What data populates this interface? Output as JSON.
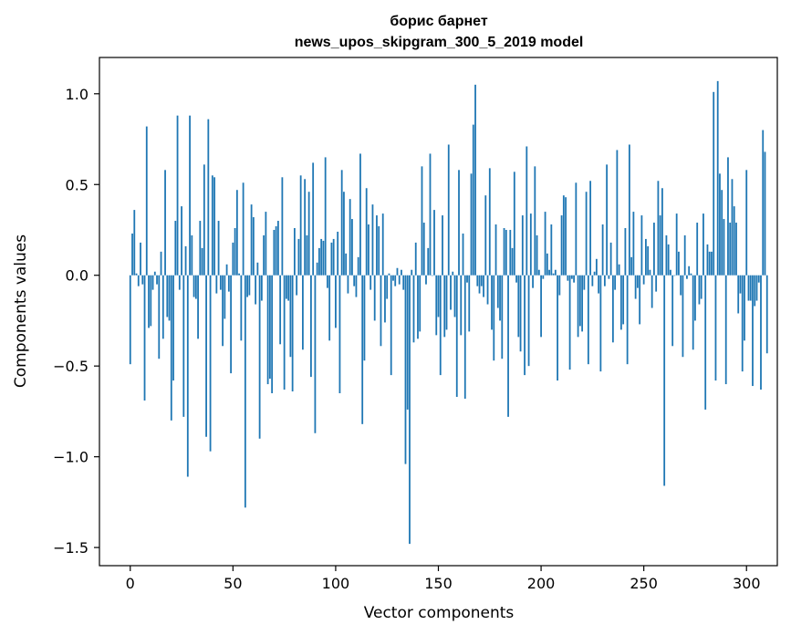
{
  "chart_data": {
    "type": "bar",
    "title": "борис барнет",
    "subtitle": "news_upos_skipgram_300_5_2019 model",
    "xlabel": "Vector components",
    "ylabel": "Components values",
    "xlim": [
      -15,
      315
    ],
    "ylim": [
      -1.6,
      1.2
    ],
    "xticks": [
      0,
      50,
      100,
      150,
      200,
      250,
      300
    ],
    "yticks": [
      -1.5,
      -1.0,
      -0.5,
      0.0,
      0.5,
      1.0
    ],
    "ytick_labels": [
      "−1.5",
      "−1.0",
      "−0.5",
      "0.0",
      "0.5",
      "1.0"
    ],
    "bar_color": "#1f77b4",
    "grid": false,
    "x_start": 0,
    "values": [
      -0.49,
      0.23,
      0.36,
      0.01,
      -0.06,
      0.18,
      -0.05,
      -0.69,
      0.82,
      -0.29,
      -0.28,
      -0.08,
      0.02,
      -0.05,
      -0.46,
      0.13,
      -0.35,
      0.58,
      -0.23,
      -0.25,
      -0.8,
      -0.58,
      0.3,
      0.88,
      -0.08,
      0.38,
      -0.78,
      0.16,
      -1.11,
      0.88,
      0.22,
      -0.12,
      -0.13,
      -0.35,
      0.3,
      0.15,
      0.61,
      -0.89,
      0.86,
      -0.97,
      0.55,
      0.54,
      -0.1,
      0.3,
      -0.08,
      -0.39,
      -0.24,
      0.06,
      -0.09,
      -0.54,
      0.18,
      0.26,
      0.47,
      0.01,
      -0.36,
      0.51,
      -1.28,
      -0.12,
      -0.11,
      0.39,
      0.32,
      -0.16,
      0.07,
      -0.9,
      -0.14,
      0.22,
      0.35,
      -0.6,
      -0.57,
      -0.65,
      0.25,
      0.27,
      0.3,
      -0.38,
      0.54,
      -0.63,
      -0.13,
      -0.14,
      -0.45,
      -0.64,
      0.26,
      -0.11,
      0.2,
      0.55,
      -0.41,
      0.53,
      0.22,
      0.46,
      -0.56,
      0.62,
      -0.87,
      0.07,
      0.15,
      0.2,
      0.19,
      0.65,
      -0.07,
      -0.36,
      0.18,
      0.2,
      -0.29,
      0.24,
      -0.65,
      0.58,
      0.46,
      0.12,
      -0.1,
      0.42,
      0.31,
      -0.06,
      -0.12,
      0.1,
      0.67,
      -0.82,
      -0.47,
      0.48,
      0.28,
      -0.08,
      0.39,
      -0.25,
      0.33,
      0.27,
      -0.39,
      0.34,
      -0.26,
      -0.13,
      0.01,
      -0.55,
      -0.03,
      -0.06,
      0.04,
      -0.05,
      0.03,
      -0.08,
      -1.04,
      -0.74,
      -1.48,
      0.03,
      -0.37,
      0.18,
      -0.35,
      -0.31,
      0.6,
      0.29,
      -0.05,
      0.15,
      0.67,
      0.0,
      0.36,
      -0.33,
      -0.23,
      -0.55,
      0.33,
      -0.34,
      -0.3,
      0.72,
      -0.19,
      0.02,
      -0.23,
      -0.67,
      0.58,
      -0.33,
      0.23,
      -0.68,
      -0.04,
      -0.31,
      0.56,
      0.83,
      1.05,
      -0.06,
      -0.1,
      -0.06,
      -0.12,
      0.44,
      -0.16,
      0.59,
      -0.3,
      -0.47,
      0.28,
      -0.18,
      -0.25,
      -0.46,
      0.26,
      0.25,
      -0.78,
      0.25,
      0.15,
      0.57,
      -0.04,
      -0.34,
      -0.42,
      0.33,
      -0.55,
      0.71,
      -0.5,
      0.34,
      -0.07,
      0.6,
      0.22,
      0.03,
      -0.34,
      -0.02,
      0.35,
      0.12,
      0.03,
      0.28,
      0.01,
      0.03,
      -0.58,
      -0.11,
      0.33,
      0.44,
      0.43,
      -0.03,
      -0.52,
      -0.02,
      -0.04,
      0.51,
      -0.34,
      -0.28,
      -0.31,
      -0.08,
      0.46,
      -0.49,
      0.52,
      -0.06,
      0.02,
      0.09,
      -0.1,
      -0.53,
      0.28,
      -0.06,
      0.61,
      -0.02,
      0.18,
      -0.37,
      -0.08,
      0.69,
      0.06,
      -0.3,
      -0.27,
      0.26,
      -0.49,
      0.72,
      0.1,
      0.35,
      -0.13,
      -0.07,
      -0.27,
      0.33,
      -0.05,
      0.2,
      0.16,
      0.03,
      -0.18,
      0.29,
      -0.09,
      0.52,
      0.33,
      0.48,
      -1.16,
      0.22,
      0.17,
      0.03,
      -0.39,
      0.0,
      0.34,
      0.13,
      -0.11,
      -0.45,
      0.22,
      -0.02,
      0.05,
      0.01,
      -0.41,
      -0.25,
      0.29,
      -0.16,
      -0.13,
      0.34,
      -0.74,
      0.17,
      0.13,
      0.13,
      1.01,
      -0.58,
      1.07,
      0.56,
      0.47,
      0.31,
      -0.6,
      0.65,
      0.29,
      0.53,
      0.38,
      0.29,
      -0.21,
      -0.1,
      -0.53,
      -0.36,
      0.58,
      -0.14,
      -0.14,
      -0.61,
      -0.17,
      -0.14,
      -0.04,
      -0.63,
      0.8,
      0.68,
      -0.43
    ]
  }
}
